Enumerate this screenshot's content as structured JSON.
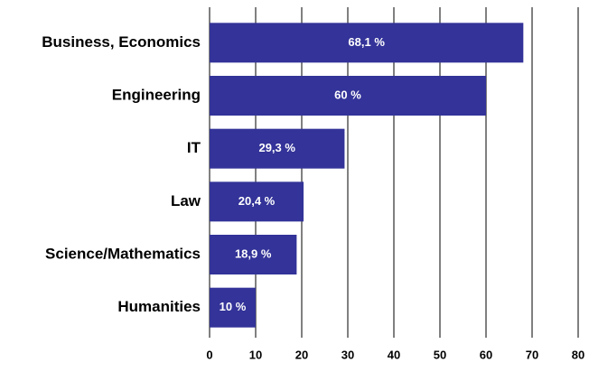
{
  "chart_data": {
    "type": "hbar",
    "categories": [
      "Business, Economics",
      "Engineering",
      "IT",
      "Law",
      "Science/Mathematics",
      "Humanities"
    ],
    "values": [
      68.1,
      60,
      29.3,
      20.4,
      18.9,
      10
    ],
    "value_labels": [
      "68,1 %",
      "60 %",
      "29,3 %",
      "20,4 %",
      "18,9 %",
      "10 %"
    ],
    "color": "#333399",
    "xlim": [
      0,
      80
    ],
    "xticks": [
      0,
      10,
      20,
      30,
      40,
      50,
      60,
      70,
      80
    ],
    "grid": true
  }
}
